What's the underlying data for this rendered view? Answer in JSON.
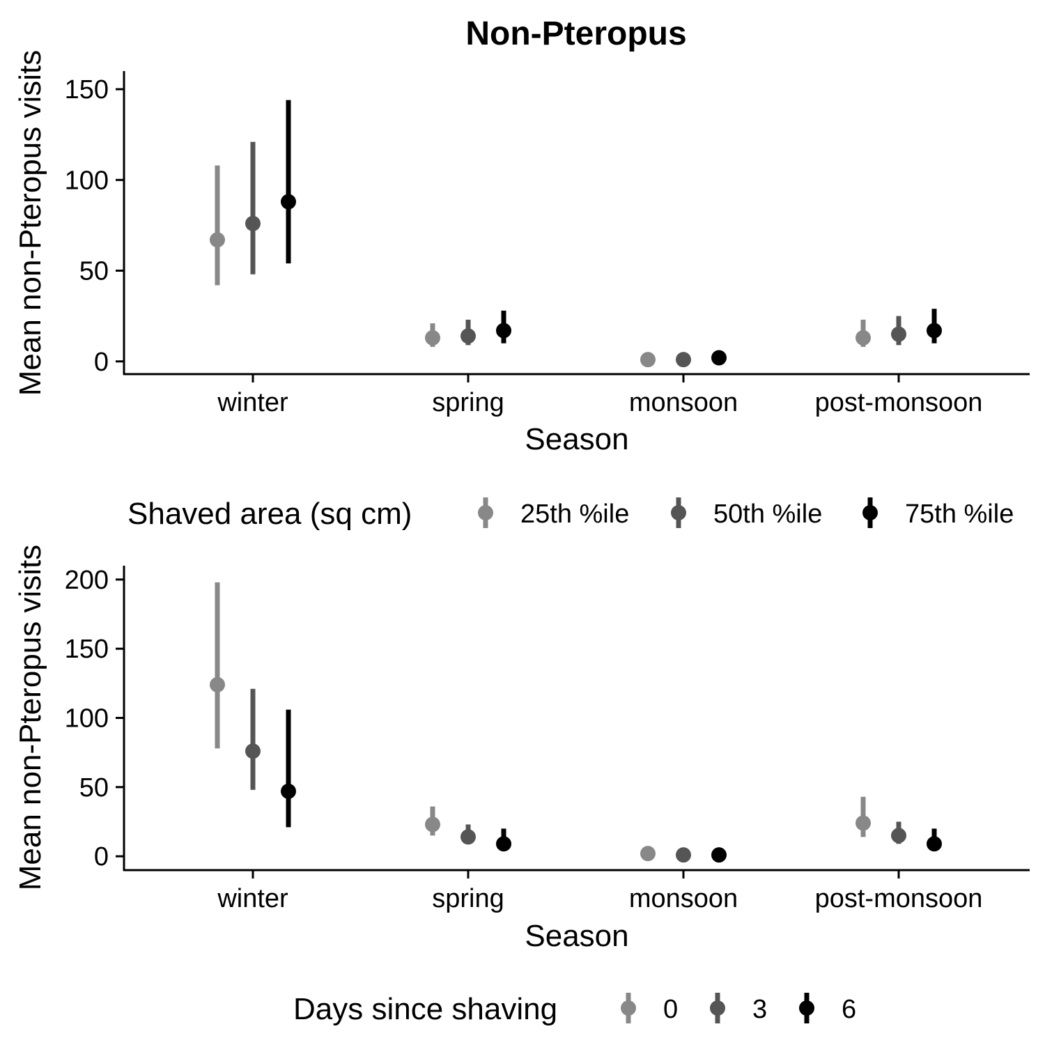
{
  "figure_title": "Non-Pteropus",
  "chart_data": [
    {
      "type": "scatter",
      "panel": "top",
      "title": "Non-Pteropus",
      "xlabel": "Season",
      "ylabel": "Mean non-Pteropus visits",
      "categories": [
        "winter",
        "spring",
        "monsoon",
        "post-monsoon"
      ],
      "ylim": [
        -7,
        160
      ],
      "yticks": [
        0,
        50,
        100,
        150
      ],
      "grid": false,
      "legend_title": "Shaved area (sq cm)",
      "legend_position": "middle-between-panels",
      "series": [
        {
          "name": "25th %ile",
          "color": "#888888",
          "values": [
            67,
            13,
            1,
            13
          ],
          "lower": [
            42,
            8,
            0.5,
            8
          ],
          "upper": [
            108,
            21,
            2,
            23
          ]
        },
        {
          "name": "50th %ile",
          "color": "#555555",
          "values": [
            76,
            14,
            1,
            15
          ],
          "lower": [
            48,
            9,
            0.5,
            9
          ],
          "upper": [
            121,
            23,
            2,
            25
          ]
        },
        {
          "name": "75th %ile",
          "color": "#000000",
          "values": [
            88,
            17,
            2,
            17
          ],
          "lower": [
            54,
            10,
            1,
            10
          ],
          "upper": [
            144,
            28,
            3,
            29
          ]
        }
      ]
    },
    {
      "type": "scatter",
      "panel": "bottom",
      "title": "",
      "xlabel": "Season",
      "ylabel": "Mean non-Pteropus visits",
      "categories": [
        "winter",
        "spring",
        "monsoon",
        "post-monsoon"
      ],
      "ylim": [
        -10,
        210
      ],
      "yticks": [
        0,
        50,
        100,
        150,
        200
      ],
      "grid": false,
      "legend_title": "Days since shaving",
      "legend_position": "bottom-center",
      "series": [
        {
          "name": "0",
          "color": "#888888",
          "values": [
            124,
            23,
            2,
            24
          ],
          "lower": [
            78,
            15,
            1,
            14
          ],
          "upper": [
            198,
            36,
            3,
            43
          ]
        },
        {
          "name": "3",
          "color": "#555555",
          "values": [
            76,
            14,
            1,
            15
          ],
          "lower": [
            48,
            9,
            0.5,
            9
          ],
          "upper": [
            121,
            23,
            2,
            25
          ]
        },
        {
          "name": "6",
          "color": "#000000",
          "values": [
            47,
            9,
            1,
            9
          ],
          "lower": [
            21,
            5,
            0.5,
            5
          ],
          "upper": [
            106,
            20,
            2,
            20
          ]
        }
      ]
    }
  ]
}
